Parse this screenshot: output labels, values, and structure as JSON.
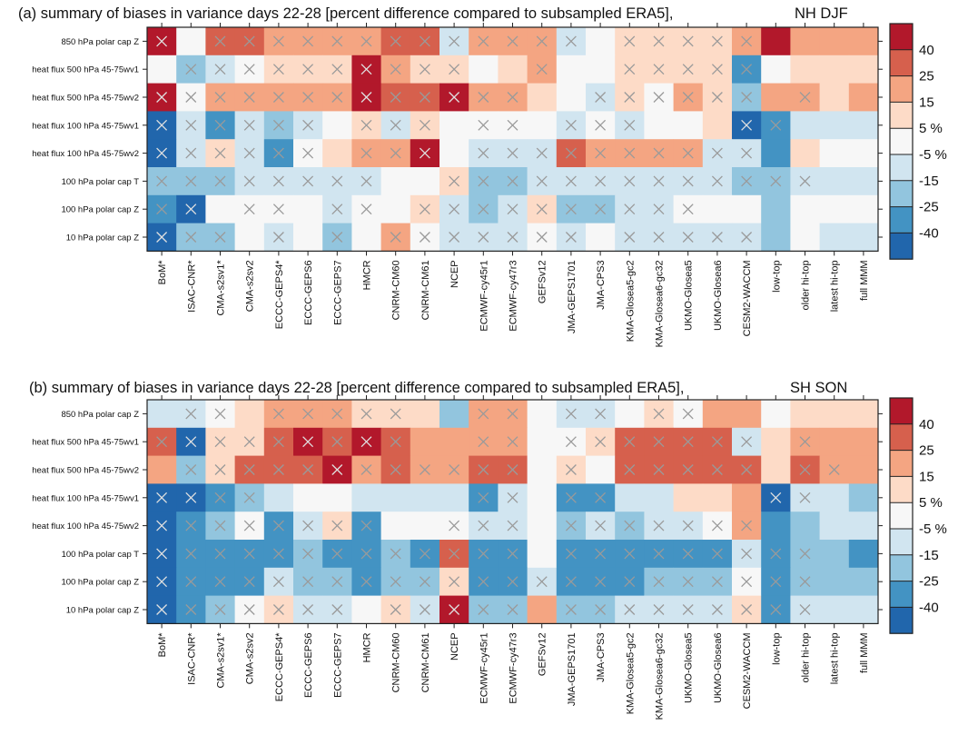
{
  "colors": {
    "bins": [
      "#2166ac",
      "#4393c3",
      "#92c5de",
      "#d1e5f0",
      "#f7f7f7",
      "#fddbc7",
      "#f4a582",
      "#d6604d",
      "#b2182b"
    ],
    "cross": "#9a9a9a"
  },
  "colorbar": {
    "labels": [
      "40",
      "25",
      "15",
      "5 %",
      "-5 %",
      "-15",
      "-25",
      "-40"
    ]
  },
  "chart_data": [
    {
      "type": "heatmap",
      "title": "(a) summary of biases in variance days 22-28 [percent difference compared to subsampled ERA5],",
      "subtitle": "NH DJF",
      "rows": [
        "850 hPa polar cap Z",
        "heat flux 500 hPa 45-75wv1",
        "heat flux 500 hPa 45-75wv2",
        "heat flux 100 hPa 45-75wv1",
        "heat flux 100 hPa 45-75wv2",
        "100 hPa polar cap T",
        "100 hPa polar cap Z",
        "10 hPa polar cap Z"
      ],
      "columns": [
        "BoM*",
        "ISAC-CNR*",
        "CMA-s2sv1*",
        "CMA-s2sv2",
        "ECCC-GEPS4*",
        "ECCC-GEPS6",
        "ECCC-GEPS7",
        "HMCR",
        "CNRM-CM60",
        "CNRM-CM61",
        "NCEP",
        "ECMWF-cy45r1",
        "ECMWF-cy47r3",
        "GEFSv12",
        "JMA-GEPS1701",
        "JMA-CPS3",
        "KMA-Glosea5-gc2",
        "KMA-Glosea6-gc32",
        "UKMO-Glosea5",
        "UKMO-Glosea6",
        "CESM2-WACCM",
        "low-top",
        "older hi-top",
        "latest hi-top",
        "full MMM"
      ],
      "bin_edges": [
        -40,
        -25,
        -15,
        -5,
        5,
        15,
        25,
        40
      ],
      "bins": [
        [
          8,
          4,
          7,
          7,
          6,
          6,
          6,
          6,
          7,
          7,
          3,
          6,
          6,
          6,
          3,
          4,
          5,
          5,
          5,
          5,
          6,
          8,
          6,
          6,
          6
        ],
        [
          4,
          2,
          3,
          4,
          5,
          5,
          5,
          8,
          6,
          5,
          5,
          4,
          5,
          6,
          4,
          4,
          5,
          5,
          5,
          5,
          1,
          4,
          5,
          5,
          5
        ],
        [
          8,
          4,
          6,
          6,
          6,
          6,
          6,
          8,
          7,
          7,
          8,
          6,
          6,
          5,
          4,
          3,
          5,
          4,
          6,
          5,
          2,
          6,
          6,
          5,
          6
        ],
        [
          0,
          3,
          1,
          3,
          2,
          3,
          4,
          5,
          3,
          5,
          4,
          4,
          4,
          4,
          3,
          4,
          3,
          4,
          4,
          5,
          0,
          1,
          3,
          3,
          3
        ],
        [
          0,
          3,
          5,
          3,
          1,
          4,
          5,
          6,
          6,
          8,
          4,
          3,
          3,
          3,
          7,
          6,
          6,
          6,
          6,
          3,
          3,
          1,
          5,
          4,
          4
        ],
        [
          2,
          2,
          2,
          3,
          3,
          3,
          3,
          3,
          4,
          4,
          5,
          2,
          2,
          3,
          3,
          3,
          3,
          3,
          3,
          3,
          2,
          2,
          3,
          3,
          3
        ],
        [
          1,
          0,
          4,
          4,
          4,
          4,
          3,
          4,
          4,
          5,
          3,
          2,
          3,
          5,
          2,
          2,
          3,
          3,
          4,
          4,
          4,
          2,
          4,
          4,
          4
        ],
        [
          0,
          2,
          2,
          4,
          3,
          4,
          2,
          4,
          6,
          4,
          3,
          3,
          3,
          4,
          3,
          4,
          3,
          3,
          3,
          3,
          3,
          2,
          4,
          3,
          3
        ]
      ],
      "significant": [
        [
          1,
          0,
          1,
          1,
          1,
          1,
          1,
          1,
          1,
          1,
          1,
          1,
          1,
          1,
          1,
          0,
          1,
          1,
          1,
          1,
          1,
          0,
          0,
          0,
          0
        ],
        [
          0,
          1,
          1,
          1,
          1,
          1,
          1,
          1,
          1,
          1,
          1,
          0,
          0,
          1,
          0,
          0,
          1,
          1,
          1,
          1,
          1,
          0,
          0,
          0,
          0
        ],
        [
          1,
          1,
          1,
          1,
          1,
          1,
          1,
          1,
          1,
          1,
          1,
          1,
          1,
          0,
          0,
          1,
          1,
          1,
          1,
          1,
          1,
          0,
          1,
          0,
          0
        ],
        [
          1,
          1,
          1,
          1,
          1,
          1,
          0,
          1,
          1,
          1,
          0,
          1,
          1,
          0,
          1,
          1,
          1,
          0,
          0,
          0,
          1,
          1,
          0,
          0,
          0
        ],
        [
          1,
          1,
          1,
          1,
          1,
          1,
          0,
          1,
          1,
          1,
          0,
          1,
          1,
          1,
          1,
          1,
          1,
          1,
          1,
          1,
          1,
          0,
          0,
          0,
          0
        ],
        [
          1,
          1,
          1,
          1,
          1,
          1,
          1,
          1,
          0,
          0,
          1,
          1,
          1,
          1,
          1,
          1,
          1,
          1,
          1,
          1,
          1,
          1,
          1,
          0,
          0
        ],
        [
          1,
          1,
          0,
          1,
          1,
          0,
          1,
          1,
          0,
          1,
          1,
          1,
          1,
          1,
          1,
          1,
          1,
          1,
          1,
          0,
          0,
          0,
          0,
          0,
          0
        ],
        [
          1,
          1,
          1,
          0,
          1,
          0,
          1,
          0,
          1,
          1,
          1,
          1,
          1,
          1,
          1,
          0,
          1,
          1,
          1,
          1,
          1,
          0,
          0,
          0,
          0
        ]
      ]
    },
    {
      "type": "heatmap",
      "title": "(b) summary of biases in variance days 22-28 [percent difference compared to subsampled ERA5],",
      "subtitle": "SH SON",
      "rows": [
        "850 hPa polar cap Z",
        "heat flux 500 hPa 45-75wv1",
        "heat flux 500 hPa 45-75wv2",
        "heat flux 100 hPa 45-75wv1",
        "heat flux 100 hPa 45-75wv2",
        "100 hPa polar cap T",
        "100 hPa polar cap Z",
        "10 hPa polar cap Z"
      ],
      "columns": [
        "BoM*",
        "ISAC-CNR*",
        "CMA-s2sv1*",
        "CMA-s2sv2",
        "ECCC-GEPS4*",
        "ECCC-GEPS6",
        "ECCC-GEPS7",
        "HMCR",
        "CNRM-CM60",
        "CNRM-CM61",
        "NCEP",
        "ECMWF-cy45r1",
        "ECMWF-cy47r3",
        "GEFSv12",
        "JMA-GEPS1701",
        "JMA-CPS3",
        "KMA-Glosea5-gc2",
        "KMA-Glosea6-gc32",
        "UKMO-Glosea5",
        "UKMO-Glosea6",
        "CESM2-WACCM",
        "low-top",
        "older hi-top",
        "latest hi-top",
        "full MMM"
      ],
      "bin_edges": [
        -40,
        -25,
        -15,
        -5,
        5,
        15,
        25,
        40
      ],
      "bins": [
        [
          3,
          3,
          4,
          5,
          6,
          6,
          6,
          5,
          5,
          5,
          2,
          6,
          6,
          4,
          3,
          3,
          4,
          5,
          4,
          6,
          6,
          4,
          5,
          5,
          5
        ],
        [
          7,
          0,
          5,
          5,
          7,
          8,
          7,
          8,
          7,
          6,
          6,
          6,
          6,
          4,
          4,
          5,
          7,
          7,
          7,
          7,
          3,
          5,
          6,
          6,
          6
        ],
        [
          6,
          2,
          5,
          7,
          7,
          7,
          8,
          6,
          7,
          6,
          6,
          7,
          7,
          4,
          5,
          4,
          7,
          7,
          7,
          7,
          7,
          5,
          7,
          6,
          6
        ],
        [
          0,
          0,
          1,
          2,
          3,
          4,
          4,
          3,
          3,
          3,
          3,
          1,
          3,
          4,
          1,
          1,
          3,
          3,
          5,
          5,
          6,
          0,
          3,
          3,
          2
        ],
        [
          0,
          1,
          2,
          4,
          1,
          3,
          5,
          1,
          4,
          4,
          4,
          3,
          3,
          4,
          2,
          3,
          2,
          3,
          3,
          4,
          6,
          1,
          2,
          3,
          3
        ],
        [
          0,
          1,
          1,
          1,
          1,
          2,
          1,
          1,
          2,
          1,
          7,
          1,
          1,
          4,
          1,
          1,
          1,
          1,
          1,
          1,
          3,
          1,
          2,
          2,
          1
        ],
        [
          0,
          1,
          1,
          1,
          3,
          2,
          2,
          1,
          2,
          2,
          5,
          1,
          1,
          3,
          1,
          1,
          1,
          2,
          2,
          2,
          4,
          1,
          2,
          2,
          2
        ],
        [
          0,
          1,
          2,
          4,
          5,
          3,
          3,
          4,
          5,
          3,
          8,
          2,
          2,
          6,
          2,
          2,
          3,
          3,
          3,
          3,
          5,
          1,
          3,
          3,
          3
        ]
      ],
      "significant": [
        [
          0,
          1,
          1,
          0,
          1,
          1,
          1,
          1,
          1,
          0,
          0,
          1,
          1,
          0,
          1,
          1,
          0,
          1,
          1,
          0,
          0,
          0,
          0,
          0,
          0
        ],
        [
          1,
          1,
          1,
          1,
          1,
          1,
          1,
          1,
          1,
          0,
          0,
          1,
          1,
          0,
          1,
          1,
          1,
          1,
          1,
          1,
          1,
          0,
          1,
          0,
          0
        ],
        [
          0,
          1,
          1,
          1,
          1,
          1,
          1,
          1,
          1,
          1,
          1,
          1,
          1,
          0,
          1,
          0,
          1,
          1,
          1,
          1,
          1,
          0,
          1,
          1,
          0
        ],
        [
          1,
          1,
          1,
          1,
          0,
          0,
          0,
          0,
          0,
          0,
          0,
          1,
          1,
          0,
          1,
          1,
          0,
          0,
          0,
          0,
          0,
          1,
          1,
          0,
          0
        ],
        [
          1,
          1,
          1,
          1,
          1,
          1,
          1,
          1,
          0,
          0,
          1,
          1,
          1,
          0,
          1,
          1,
          1,
          1,
          1,
          1,
          1,
          0,
          0,
          0,
          0
        ],
        [
          1,
          1,
          1,
          1,
          1,
          1,
          1,
          1,
          1,
          1,
          1,
          1,
          1,
          0,
          1,
          1,
          1,
          1,
          1,
          1,
          1,
          1,
          1,
          0,
          0
        ],
        [
          1,
          1,
          1,
          1,
          1,
          1,
          1,
          1,
          1,
          1,
          1,
          1,
          1,
          1,
          1,
          1,
          1,
          1,
          1,
          1,
          1,
          1,
          1,
          0,
          0
        ],
        [
          1,
          1,
          1,
          1,
          1,
          1,
          1,
          0,
          1,
          1,
          1,
          1,
          1,
          0,
          1,
          1,
          1,
          1,
          1,
          1,
          1,
          1,
          1,
          0,
          0
        ]
      ]
    }
  ]
}
